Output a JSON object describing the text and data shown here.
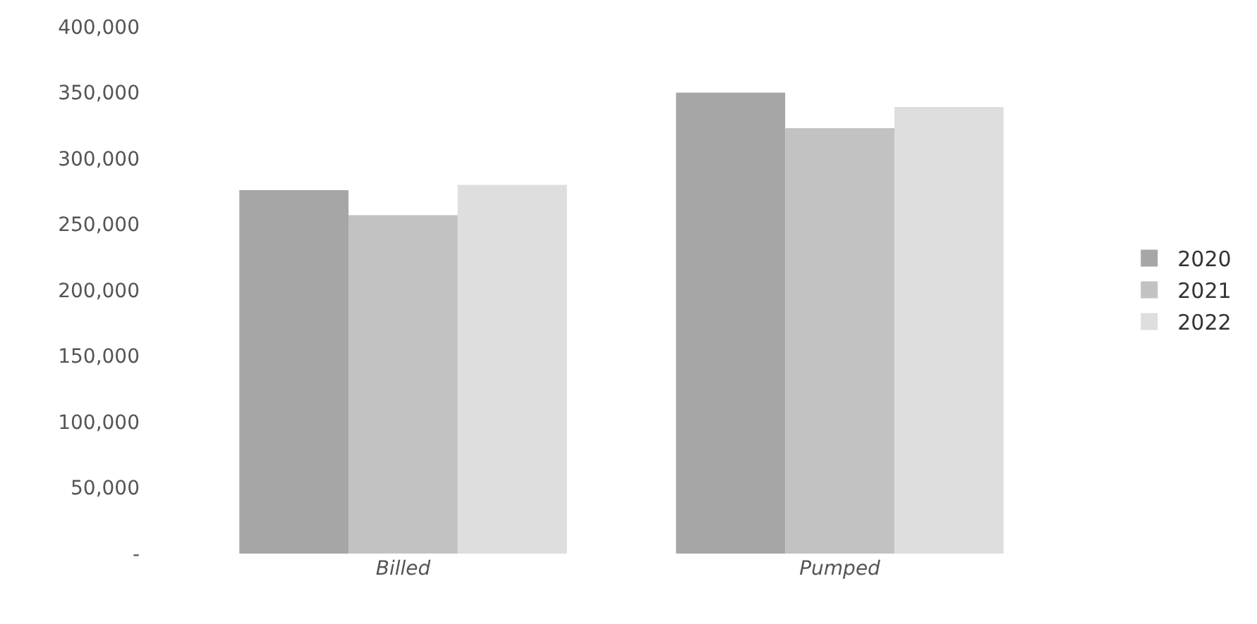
{
  "chart_data": {
    "type": "bar",
    "categories": [
      "Billed",
      "Pumped"
    ],
    "series": [
      {
        "name": "2020",
        "color": "#a6a6a6",
        "values": [
          276000,
          350000
        ]
      },
      {
        "name": "2021",
        "color": "#c2c2c2",
        "values": [
          257000,
          323000
        ]
      },
      {
        "name": "2022",
        "color": "#dedede",
        "values": [
          280000,
          339000
        ]
      }
    ],
    "ylim": [
      0,
      400000
    ],
    "yticks": [
      {
        "value": 0,
        "label": "-"
      },
      {
        "value": 50000,
        "label": "50,000"
      },
      {
        "value": 100000,
        "label": "100,000"
      },
      {
        "value": 150000,
        "label": "150,000"
      },
      {
        "value": 200000,
        "label": "200,000"
      },
      {
        "value": 250000,
        "label": "250,000"
      },
      {
        "value": 300000,
        "label": "300,000"
      },
      {
        "value": 350000,
        "label": "350,000"
      },
      {
        "value": 400000,
        "label": "400,000"
      }
    ],
    "legend": "right"
  }
}
